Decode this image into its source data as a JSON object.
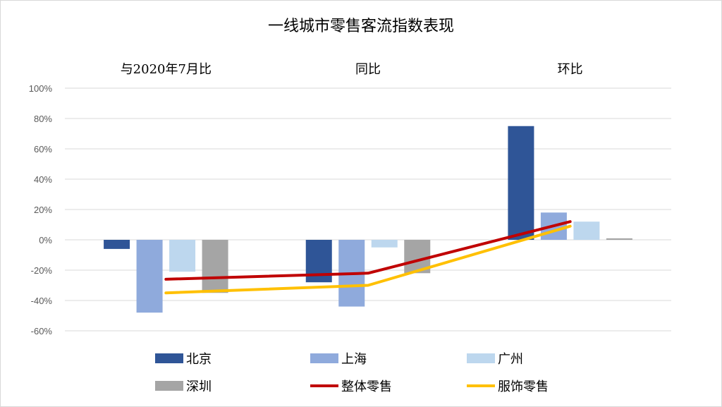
{
  "chart_data": {
    "type": "bar",
    "title": "一线城市零售客流指数表现",
    "categories": [
      "与2020年7月比",
      "同比",
      "环比"
    ],
    "yaxis": {
      "min": -60,
      "max": 100,
      "step": 20,
      "tick_suffix": "%"
    },
    "ytick_labels": [
      "100%",
      "80%",
      "60%",
      "40%",
      "20%",
      "0%",
      "-20%",
      "-40%",
      "-60%"
    ],
    "grid": true,
    "legend_position": "bottom",
    "bar_series": [
      {
        "name": "北京",
        "color": "#2F5597",
        "values": [
          -6,
          -28,
          75
        ]
      },
      {
        "name": "上海",
        "color": "#8FAADC",
        "values": [
          -48,
          -44,
          18
        ]
      },
      {
        "name": "广州",
        "color": "#BDD7EE",
        "values": [
          -21,
          -5,
          12
        ]
      },
      {
        "name": "深圳",
        "color": "#A5A5A5",
        "values": [
          -35,
          -22,
          1
        ]
      }
    ],
    "line_series": [
      {
        "name": "整体零售",
        "color": "#C00000",
        "values": [
          -26,
          -22,
          12
        ]
      },
      {
        "name": "服饰零售",
        "color": "#FFC000",
        "values": [
          -35,
          -30,
          9
        ]
      }
    ]
  }
}
